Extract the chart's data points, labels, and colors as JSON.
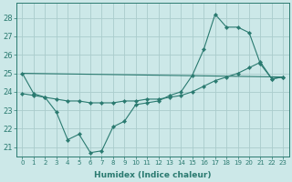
{
  "xlabel": "Humidex (Indice chaleur)",
  "background_color": "#cce8e8",
  "grid_color": "#aacccc",
  "line_color": "#2a7a70",
  "xlim": [
    -0.5,
    23.5
  ],
  "ylim": [
    20.5,
    28.8
  ],
  "yticks": [
    21,
    22,
    23,
    24,
    25,
    26,
    27,
    28
  ],
  "xticks": [
    0,
    1,
    2,
    3,
    4,
    5,
    6,
    7,
    8,
    9,
    10,
    11,
    12,
    13,
    14,
    15,
    16,
    17,
    18,
    19,
    20,
    21,
    22,
    23
  ],
  "series1_x": [
    0,
    1,
    2,
    3,
    4,
    5,
    6,
    7,
    8,
    9,
    10,
    11,
    12,
    13,
    14,
    15,
    16,
    17,
    18,
    19,
    20,
    21,
    22,
    23
  ],
  "series1_y": [
    25.0,
    23.9,
    23.7,
    22.9,
    21.4,
    21.7,
    20.7,
    20.8,
    22.1,
    22.4,
    23.3,
    23.4,
    23.5,
    23.8,
    24.0,
    24.9,
    26.3,
    28.2,
    27.5,
    27.5,
    27.2,
    25.5,
    24.7,
    24.8
  ],
  "series2_x": [
    0,
    1,
    2,
    3,
    4,
    5,
    6,
    7,
    8,
    9,
    10,
    11,
    12,
    13,
    14,
    15,
    16,
    17,
    18,
    19,
    20,
    21,
    22,
    23
  ],
  "series2_y": [
    23.9,
    23.8,
    23.7,
    23.6,
    23.5,
    23.5,
    23.4,
    23.4,
    23.4,
    23.5,
    23.5,
    23.6,
    23.6,
    23.7,
    23.8,
    24.0,
    24.3,
    24.6,
    24.8,
    25.0,
    25.3,
    25.6,
    24.7,
    24.8
  ],
  "series3_x": [
    0,
    23
  ],
  "series3_y": [
    25.0,
    24.8
  ]
}
